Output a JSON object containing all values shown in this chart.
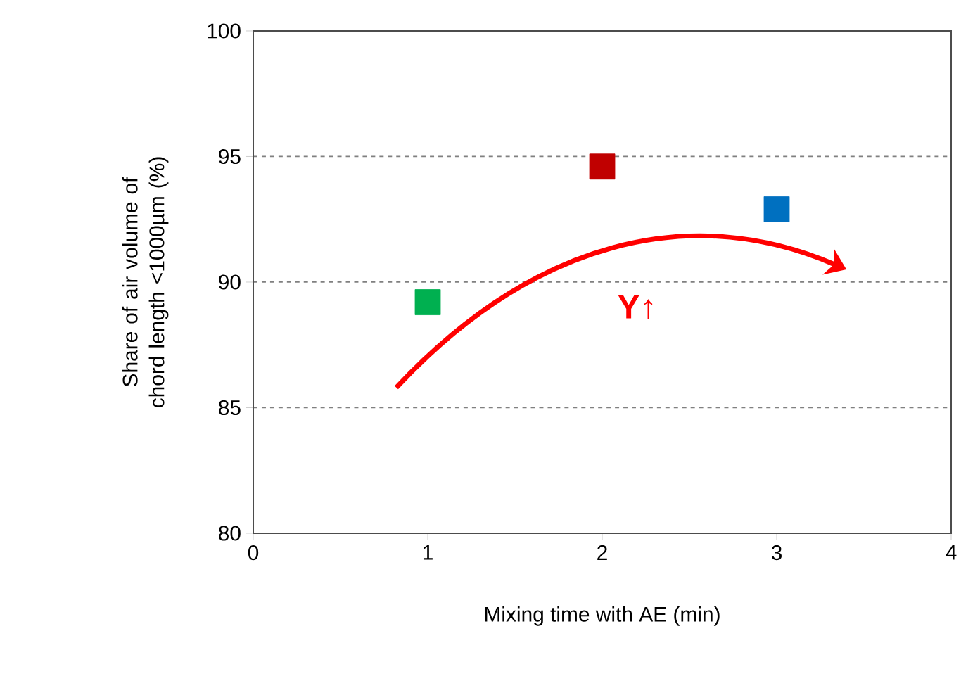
{
  "chart_data": {
    "type": "scatter",
    "xlabel": "Mixing time with AE (min)",
    "ylabel": "Share of air volume of chord length <1000µm (%)",
    "x": [
      1,
      2,
      3
    ],
    "values": [
      89.2,
      94.6,
      92.9
    ],
    "colors": [
      "#00b050",
      "#c00000",
      "#0070c0"
    ],
    "marker": "square",
    "xlim": [
      0,
      4
    ],
    "xticks": [
      0,
      1,
      2,
      3,
      4
    ],
    "ylim": [
      80,
      100
    ],
    "yticks": [
      80,
      85,
      90,
      95,
      100
    ],
    "grid": "y",
    "annotations": [
      "Y↑"
    ]
  }
}
